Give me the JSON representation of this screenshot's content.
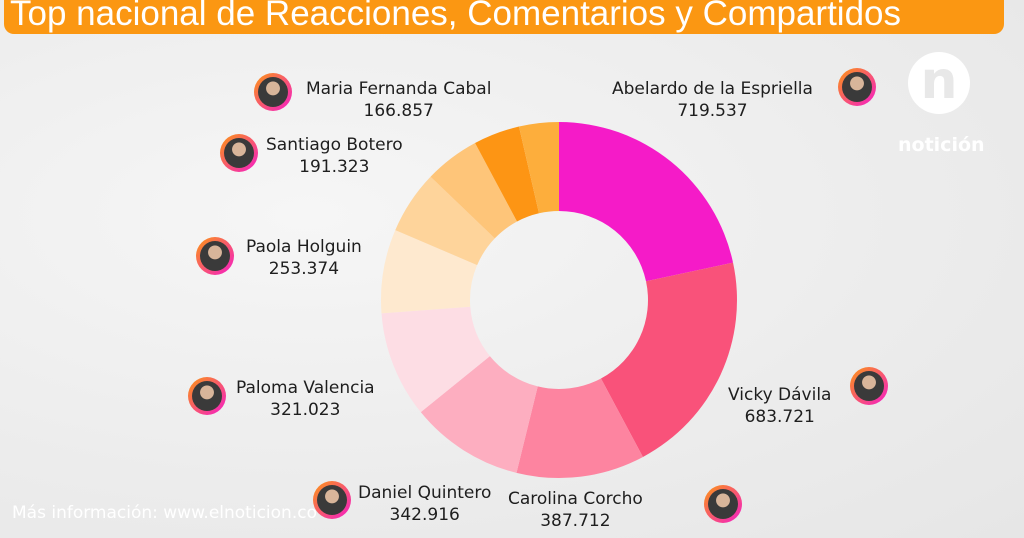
{
  "title": "Top nacional de Reacciones, Comentarios y Compartidos",
  "logo_text": "notición",
  "footer": "Más información: www.elnoticion.co",
  "chart_data": {
    "type": "pie",
    "subtype": "donut",
    "title": "Top nacional de Reacciones, Comentarios y Compartidos",
    "labels": [
      "Abelardo de la Espriella",
      "Vicky Dávila",
      "Carolina Corcho",
      "Daniel Quintero",
      "Paloma Valencia",
      "Paola Holguin",
      "Santiago Botero",
      "Maria Fernanda Cabal",
      "",
      ""
    ],
    "values": [
      719537,
      683721,
      387712,
      342916,
      321023,
      253374,
      191323,
      166857,
      140000,
      120000
    ],
    "display_values": [
      "719.537",
      "683.721",
      "387.712",
      "342.916",
      "321.023",
      "253.374",
      "191.323",
      "166.857",
      "",
      ""
    ],
    "colors": [
      "#f51bc8",
      "#f9527a",
      "#fd84a0",
      "#fdaec0",
      "#fddde4",
      "#fee9cf",
      "#fed49b",
      "#fec579",
      "#fd9514",
      "#fdae3c"
    ]
  }
}
